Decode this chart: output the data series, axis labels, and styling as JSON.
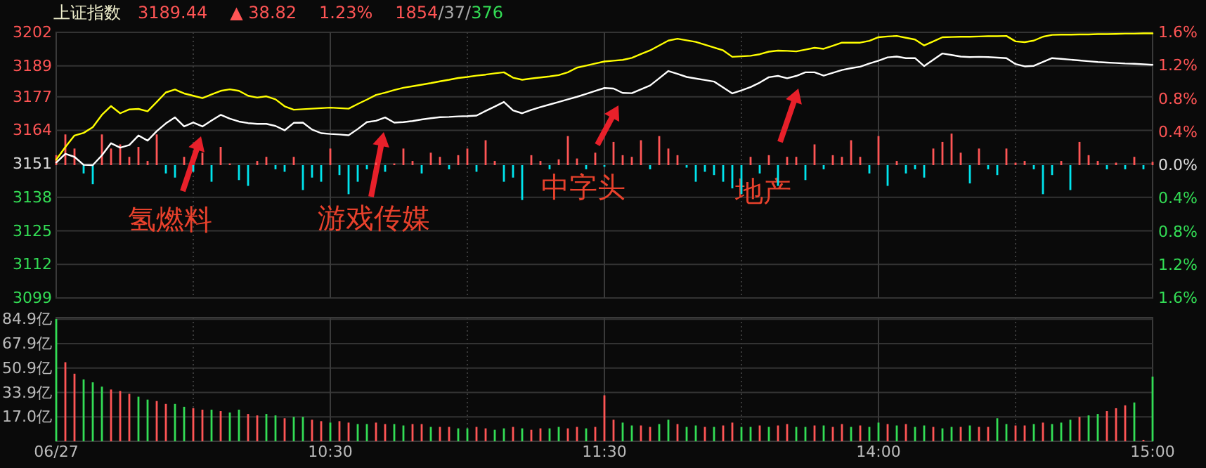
{
  "chart_data": [
    {
      "type": "line",
      "title": "上证指数",
      "annotations": [
        "3189.44",
        "▲ 38.82",
        "1.23%",
        "1854/37/376",
        "氢燃料",
        "游戏传媒",
        "中字头",
        "地产"
      ],
      "categories": [
        null,
        null,
        null,
        null,
        null,
        null,
        null,
        null,
        null,
        null,
        null,
        null,
        null,
        null,
        null,
        null,
        null,
        null,
        null,
        null,
        null,
        null,
        null,
        null,
        null,
        null,
        null,
        null,
        null,
        null,
        null,
        null,
        null,
        null,
        null,
        null,
        null,
        null,
        null,
        null,
        null,
        null,
        null,
        null,
        null,
        null,
        null,
        null,
        null,
        null,
        null,
        null,
        null,
        null,
        null,
        null,
        null,
        null,
        null,
        null,
        null,
        null,
        null,
        null,
        null,
        null,
        null,
        null,
        null,
        null,
        null,
        null,
        null,
        null,
        null,
        null,
        null,
        null,
        null,
        null,
        null,
        null,
        null,
        null,
        null,
        null,
        null,
        null,
        null,
        null,
        null,
        null,
        null,
        null,
        null,
        null,
        null,
        null,
        null,
        null,
        null,
        null,
        null,
        null,
        null,
        null,
        null,
        null,
        null,
        null,
        null,
        null,
        null,
        null,
        null,
        null,
        null,
        null,
        null,
        null,
        null
      ],
      "ylim": [
        3099,
        3202
      ],
      "yticks": [
        3202,
        3189,
        3177,
        3164,
        3151,
        3138,
        3125,
        3112,
        3099
      ],
      "y2lim": [
        -1.6,
        1.6
      ],
      "y2ticks": [
        {
          "value": 1.6,
          "label": "1.6%"
        },
        {
          "value": 1.2,
          "label": "1.2%"
        },
        {
          "value": 0.8,
          "label": "0.8%"
        },
        {
          "value": 0.4,
          "label": "0.4%"
        },
        {
          "value": 0,
          "label": "0.0%"
        },
        {
          "value": -0.4,
          "label": "0.4%"
        },
        {
          "value": -0.8,
          "label": "0.8%"
        },
        {
          "value": -1.2,
          "label": "1.2%"
        },
        {
          "value": -1.6,
          "label": "1.6%"
        }
      ],
      "tick_labels": "y",
      "grid": true,
      "series": [
        {
          "type": "bar",
          "axis": "y2",
          "values": [
            0.12,
            0.37,
            0.2,
            -0.1,
            -0.23,
            0.37,
            0.2,
            0.25,
            0.1,
            0.22,
            0.05,
            0.37,
            -0.1,
            -0.15,
            0.1,
            -0.08,
            0.15,
            -0.2,
            0.22,
            0.02,
            -0.18,
            -0.25,
            0.05,
            0.1,
            -0.05,
            -0.08,
            0.1,
            -0.3,
            -0.15,
            -0.2,
            0.2,
            -0.12,
            -0.35,
            -0.2,
            -0.05,
            0.03,
            -0.08,
            0.02,
            0.2,
            0.05,
            -0.1,
            0.15,
            0.1,
            -0.05,
            0.12,
            0.2,
            -0.08,
            0.3,
            0.05,
            -0.2,
            -0.15,
            -0.42,
            0.12,
            0.05,
            -0.05,
            0.07,
            0.35,
            0.08,
            -0.05,
            0.15,
            -0.02,
            0.28,
            0.12,
            0.1,
            0.3,
            -0.05,
            0.35,
            0.2,
            0.12,
            -0.03,
            -0.2,
            -0.08,
            -0.12,
            -0.2,
            -0.28,
            -0.35,
            0.1,
            -0.1,
            0.12,
            -0.25,
            0.1,
            0.1,
            -0.18,
            0.25,
            -0.05,
            0.12,
            0.1,
            0.3,
            0.1,
            -0.1,
            0.35,
            -0.25,
            0.05,
            -0.1,
            -0.05,
            -0.15,
            0.2,
            0.28,
            0.38,
            0.15,
            -0.22,
            0.2,
            -0.05,
            -0.12,
            0.2,
            0.03,
            0.05,
            -0.05,
            -0.35,
            -0.12,
            0.05,
            -0.3,
            0.28,
            0.12,
            0.05,
            -0.05,
            0.03,
            -0.05,
            0.1,
            -0.05,
            0.04
          ],
          "colors": [
            "#ff5555",
            "#ff5555",
            "#ff5555",
            "#00e5ee",
            "#00e5ee",
            "#ff5555",
            "#ff5555",
            "#ff5555",
            "#ff5555",
            "#ff5555",
            "#ff5555",
            "#ff5555",
            "#00e5ee",
            "#00e5ee",
            "#ff5555",
            "#00e5ee",
            "#ff5555",
            "#00e5ee",
            "#ff5555",
            "#ff5555",
            "#00e5ee",
            "#00e5ee",
            "#ff5555",
            "#ff5555",
            "#00e5ee",
            "#00e5ee",
            "#ff5555",
            "#00e5ee",
            "#00e5ee",
            "#00e5ee",
            "#ff5555",
            "#00e5ee",
            "#00e5ee",
            "#00e5ee",
            "#00e5ee",
            "#ff5555",
            "#00e5ee",
            "#ff5555",
            "#ff5555",
            "#ff5555",
            "#00e5ee",
            "#ff5555",
            "#ff5555",
            "#00e5ee",
            "#ff5555",
            "#ff5555",
            "#00e5ee",
            "#ff5555",
            "#ff5555",
            "#00e5ee",
            "#00e5ee",
            "#00e5ee",
            "#ff5555",
            "#ff5555",
            "#00e5ee",
            "#ff5555",
            "#ff5555",
            "#ff5555",
            "#00e5ee",
            "#ff5555",
            "#00e5ee",
            "#ff5555",
            "#ff5555",
            "#ff5555",
            "#ff5555",
            "#00e5ee",
            "#ff5555",
            "#ff5555",
            "#ff5555",
            "#00e5ee",
            "#00e5ee",
            "#00e5ee",
            "#00e5ee",
            "#00e5ee",
            "#00e5ee",
            "#00e5ee",
            "#ff5555",
            "#00e5ee",
            "#ff5555",
            "#00e5ee",
            "#ff5555",
            "#ff5555",
            "#00e5ee",
            "#ff5555",
            "#00e5ee",
            "#ff5555",
            "#ff5555",
            "#ff5555",
            "#ff5555",
            "#00e5ee",
            "#ff5555",
            "#00e5ee",
            "#ff5555",
            "#00e5ee",
            "#00e5ee",
            "#00e5ee",
            "#ff5555",
            "#ff5555",
            "#ff5555",
            "#ff5555",
            "#00e5ee",
            "#ff5555",
            "#00e5ee",
            "#00e5ee",
            "#ff5555",
            "#ff5555",
            "#ff5555",
            "#00e5ee",
            "#00e5ee",
            "#00e5ee",
            "#ff5555",
            "#00e5ee",
            "#ff5555",
            "#ff5555",
            "#ff5555",
            "#00e5ee",
            "#ff5555",
            "#00e5ee",
            "#ff5555",
            "#00e5ee",
            "#ff5555"
          ]
        },
        {
          "color": "#ffff00",
          "values": [
            3152.6,
            3157.5,
            3162,
            3163,
            3165.2,
            3170,
            3173.4,
            3170.6,
            3172.1,
            3172.3,
            3171.4,
            3175,
            3178.7,
            3179.8,
            3178.3,
            3177.4,
            3176.5,
            3177.9,
            3179.3,
            3179.9,
            3179.3,
            3177.4,
            3176.7,
            3177.2,
            3176,
            3173.3,
            3172,
            3172.2,
            3172.4,
            3172.6,
            3172.8,
            3172.6,
            3172.4,
            3174.2,
            3175.9,
            3177.7,
            3178.6,
            3179.6,
            3180.5,
            3181.1,
            3181.7,
            3182.3,
            3183,
            3183.6,
            3184.3,
            3184.7,
            3185.2,
            3185.6,
            3186.1,
            3186.5,
            3184.4,
            3183.6,
            3184.1,
            3184.5,
            3184.9,
            3185.4,
            3186.5,
            3188.3,
            3189.1,
            3189.9,
            3190.7,
            3191,
            3191.3,
            3192.1,
            3193.6,
            3195,
            3196.9,
            3198.8,
            3199.5,
            3198.9,
            3198.3,
            3197.2,
            3196.1,
            3195,
            3192.5,
            3192.7,
            3192.9,
            3193.5,
            3194.5,
            3194.9,
            3194.8,
            3194.6,
            3195.3,
            3196,
            3195.6,
            3196.8,
            3198,
            3198,
            3198,
            3198.7,
            3200.1,
            3200.4,
            3200.6,
            3199.9,
            3199.2,
            3196.9,
            3198.5,
            3200.1,
            3200.2,
            3200.3,
            3200.3,
            3200.4,
            3200.5,
            3200.5,
            3200.6,
            3198.5,
            3198.2,
            3198.8,
            3200.3,
            3201,
            3201.1,
            3201.1,
            3201.2,
            3201.2,
            3201.3,
            3201.3,
            3201.4,
            3201.5,
            3201.5,
            3201.6,
            3201.6
          ]
        },
        {
          "color": "#ffffff",
          "values": [
            3151.5,
            3154.9,
            3153.7,
            3150.6,
            3150.5,
            3154.3,
            3159,
            3157.3,
            3158.3,
            3162,
            3160,
            3163.7,
            3166.7,
            3169,
            3165.5,
            3167,
            3165.5,
            3167.8,
            3170,
            3168.5,
            3167.4,
            3166.8,
            3166.5,
            3166.5,
            3165.7,
            3164,
            3166.9,
            3167,
            3164.3,
            3162.9,
            3162.6,
            3162.4,
            3162.1,
            3164.5,
            3167.2,
            3167.7,
            3169,
            3167,
            3167.2,
            3167.6,
            3168.2,
            3168.7,
            3169.1,
            3169.2,
            3169.4,
            3169.5,
            3169.7,
            3171.5,
            3173.2,
            3175,
            3171.7,
            3170.6,
            3171.9,
            3173,
            3174,
            3175,
            3176,
            3177,
            3178.1,
            3179.3,
            3180.4,
            3180.2,
            3178.5,
            3178.4,
            3179.9,
            3181.4,
            3184.2,
            3187,
            3185.9,
            3184.7,
            3184.1,
            3183.5,
            3182.9,
            3180.6,
            3178.3,
            3179.5,
            3180.8,
            3182.5,
            3184.6,
            3185.1,
            3184.2,
            3185.1,
            3186.5,
            3186.5,
            3185.2,
            3186.3,
            3187.4,
            3188.1,
            3188.7,
            3189.9,
            3191,
            3192.3,
            3192.6,
            3192,
            3192,
            3188.9,
            3191.4,
            3193.8,
            3193.2,
            3192.6,
            3192.4,
            3192.5,
            3192.4,
            3192.2,
            3192,
            3189.7,
            3188.8,
            3189,
            3190.5,
            3192,
            3191.7,
            3191.4,
            3191.1,
            3190.8,
            3190.5,
            3190.3,
            3190.1,
            3189.9,
            3189.8,
            3189.6,
            3189.4
          ]
        }
      ]
    },
    {
      "type": "bar",
      "categories": [
        "06/27",
        null,
        null,
        null,
        null,
        null,
        null,
        null,
        null,
        null,
        null,
        null,
        null,
        null,
        null,
        null,
        null,
        null,
        null,
        null,
        null,
        null,
        null,
        null,
        null,
        null,
        null,
        null,
        null,
        null,
        "10:30",
        null,
        null,
        null,
        null,
        null,
        null,
        null,
        null,
        null,
        null,
        null,
        null,
        null,
        null,
        null,
        null,
        null,
        null,
        null,
        null,
        null,
        null,
        null,
        null,
        null,
        null,
        null,
        null,
        null,
        "11:30",
        null,
        null,
        null,
        null,
        null,
        null,
        null,
        null,
        null,
        null,
        null,
        null,
        null,
        null,
        null,
        null,
        null,
        null,
        null,
        null,
        null,
        null,
        null,
        null,
        null,
        null,
        null,
        null,
        null,
        "14:00",
        null,
        null,
        null,
        null,
        null,
        null,
        null,
        null,
        null,
        null,
        null,
        null,
        null,
        null,
        null,
        null,
        null,
        null,
        null,
        null,
        null,
        null,
        null,
        null,
        null,
        null,
        null,
        null,
        null,
        "15:00"
      ],
      "ylim": [
        0,
        86
      ],
      "yticks": [
        {
          "value": 84.9,
          "label": "84.9亿"
        },
        {
          "value": 67.9,
          "label": "67.9亿"
        },
        {
          "value": 50.9,
          "label": "50.9亿"
        },
        {
          "value": 33.9,
          "label": "33.9亿"
        },
        {
          "value": 17,
          "label": "17.0亿"
        }
      ],
      "grid": true,
      "series": [
        {
          "values": [
            85,
            55,
            47,
            43,
            41,
            38,
            36,
            35,
            33,
            31,
            29,
            28,
            26,
            26,
            24,
            23,
            22,
            22,
            21,
            20,
            22,
            19,
            18,
            19,
            18,
            16,
            17,
            17,
            15,
            14,
            13,
            14,
            13,
            12,
            12,
            13,
            12,
            12,
            11,
            12,
            12,
            10,
            10,
            10,
            9,
            9,
            10,
            9,
            8,
            9,
            10,
            9,
            8,
            9,
            9,
            10,
            9,
            10,
            9,
            10,
            32,
            15,
            13,
            11,
            11,
            10,
            12,
            15,
            12,
            10,
            11,
            10,
            10,
            11,
            13,
            10,
            10,
            11,
            10,
            11,
            12,
            10,
            10,
            11,
            11,
            10,
            12,
            10,
            11,
            10,
            13,
            12,
            11,
            12,
            10,
            11,
            10,
            9,
            10,
            10,
            11,
            10,
            10,
            16,
            12,
            11,
            11,
            12,
            13,
            12,
            13,
            15,
            17,
            18,
            19,
            21,
            23,
            25,
            27,
            1,
            45
          ],
          "colors": [
            "#33dd55",
            "#ff5555",
            "#ff5555",
            "#33dd55",
            "#33dd55",
            "#33dd55",
            "#ff5555",
            "#ff5555",
            "#ff5555",
            "#33dd55",
            "#33dd55",
            "#ff5555",
            "#ff5555",
            "#33dd55",
            "#33dd55",
            "#ff5555",
            "#ff5555",
            "#33dd55",
            "#ff5555",
            "#33dd55",
            "#33dd55",
            "#ff5555",
            "#ff5555",
            "#33dd55",
            "#33dd55",
            "#ff5555",
            "#33dd55",
            "#33dd55",
            "#ff5555",
            "#ff5555",
            "#33dd55",
            "#ff5555",
            "#ff5555",
            "#33dd55",
            "#33dd55",
            "#ff5555",
            "#ff5555",
            "#33dd55",
            "#33dd55",
            "#ff5555",
            "#ff5555",
            "#33dd55",
            "#ff5555",
            "#ff5555",
            "#33dd55",
            "#33dd55",
            "#ff5555",
            "#ff5555",
            "#33dd55",
            "#33dd55",
            "#ff5555",
            "#33dd55",
            "#ff5555",
            "#ff5555",
            "#33dd55",
            "#33dd55",
            "#ff5555",
            "#ff5555",
            "#33dd55",
            "#ff5555",
            "#ff5555",
            "#ff5555",
            "#33dd55",
            "#33dd55",
            "#ff5555",
            "#ff5555",
            "#33dd55",
            "#33dd55",
            "#ff5555",
            "#33dd55",
            "#33dd55",
            "#ff5555",
            "#33dd55",
            "#ff5555",
            "#ff5555",
            "#33dd55",
            "#33dd55",
            "#ff5555",
            "#33dd55",
            "#ff5555",
            "#ff5555",
            "#33dd55",
            "#33dd55",
            "#ff5555",
            "#33dd55",
            "#ff5555",
            "#ff5555",
            "#33dd55",
            "#ff5555",
            "#33dd55",
            "#33dd55",
            "#ff5555",
            "#33dd55",
            "#ff5555",
            "#33dd55",
            "#33dd55",
            "#ff5555",
            "#33dd55",
            "#33dd55",
            "#ff5555",
            "#33dd55",
            "#ff5555",
            "#ff5555",
            "#33dd55",
            "#33dd55",
            "#ff5555",
            "#ff5555",
            "#33dd55",
            "#ff5555",
            "#33dd55",
            "#33dd55",
            "#33dd55",
            "#ff5555",
            "#33dd55",
            "#33dd55",
            "#ff5555",
            "#ff5555",
            "#ff5555",
            "#33dd55",
            "#ff5555",
            "#33dd55"
          ]
        }
      ]
    }
  ]
}
